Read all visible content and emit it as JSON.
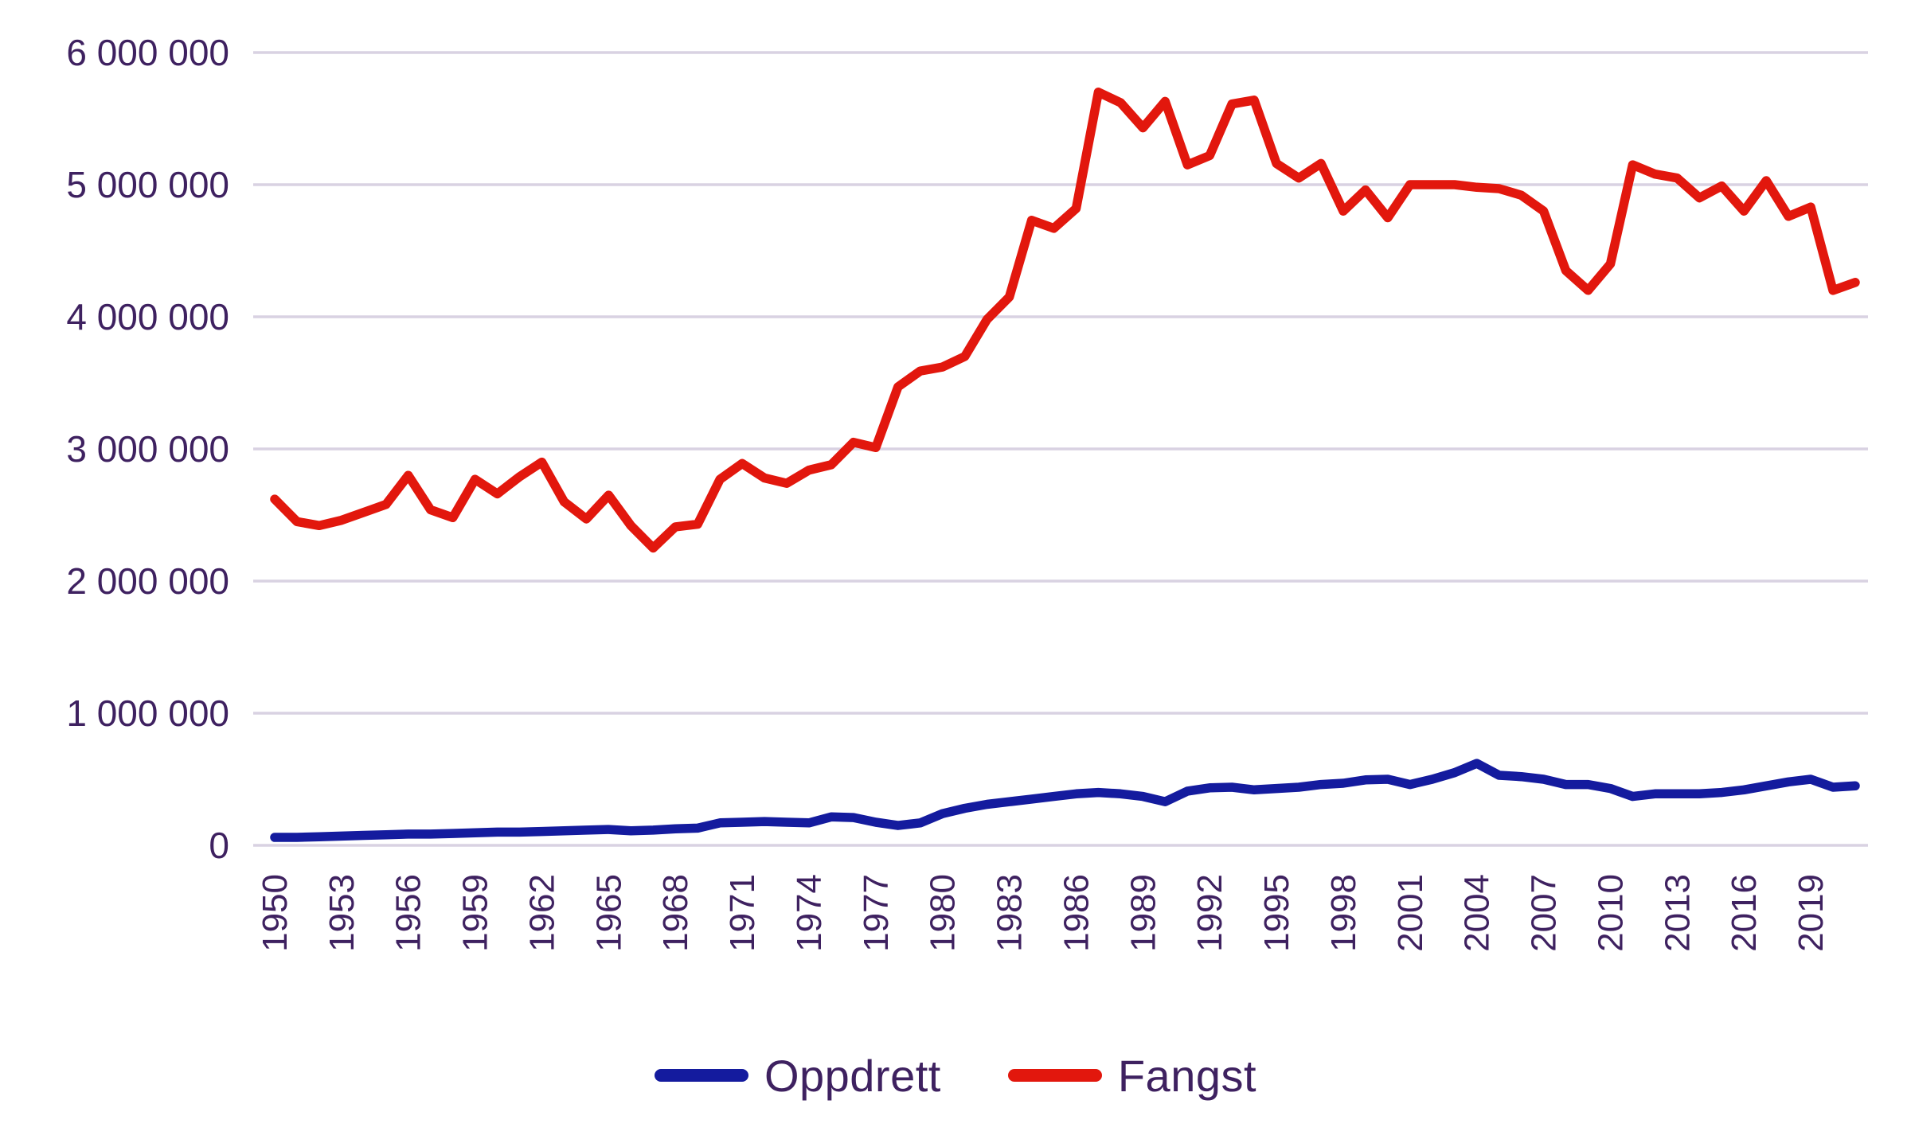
{
  "chart_data": {
    "type": "line",
    "title": "",
    "xlabel": "",
    "ylabel": "",
    "ylim": [
      0,
      6000000
    ],
    "grid": true,
    "legend_position": "bottom-center",
    "y_tick_labels": [
      "0",
      "1 000 000",
      "2 000 000",
      "3 000 000",
      "4 000 000",
      "5 000 000",
      "6 000 000"
    ],
    "x_tick_labels": [
      "1950",
      "1953",
      "1956",
      "1959",
      "1962",
      "1965",
      "1968",
      "1971",
      "1974",
      "1977",
      "1980",
      "1983",
      "1986",
      "1989",
      "1992",
      "1995",
      "1998",
      "2001",
      "2004",
      "2007",
      "2010",
      "2013",
      "2016",
      "2019"
    ],
    "x": [
      1950,
      1951,
      1952,
      1953,
      1954,
      1955,
      1956,
      1957,
      1958,
      1959,
      1960,
      1961,
      1962,
      1963,
      1964,
      1965,
      1966,
      1967,
      1968,
      1969,
      1970,
      1971,
      1972,
      1973,
      1974,
      1975,
      1976,
      1977,
      1978,
      1979,
      1980,
      1981,
      1982,
      1983,
      1984,
      1985,
      1986,
      1987,
      1988,
      1989,
      1990,
      1991,
      1992,
      1993,
      1994,
      1995,
      1996,
      1997,
      1998,
      1999,
      2000,
      2001,
      2002,
      2003,
      2004,
      2005,
      2006,
      2007,
      2008,
      2009,
      2010,
      2011,
      2012,
      2013,
      2014,
      2015,
      2016,
      2017,
      2018,
      2019,
      2020,
      2021
    ],
    "series": [
      {
        "name": "Oppdrett",
        "color": "#141B9E",
        "values": [
          60000,
          60000,
          65000,
          70000,
          75000,
          80000,
          85000,
          85000,
          90000,
          95000,
          100000,
          100000,
          105000,
          110000,
          115000,
          120000,
          110000,
          115000,
          125000,
          130000,
          170000,
          175000,
          180000,
          175000,
          170000,
          215000,
          210000,
          175000,
          150000,
          170000,
          240000,
          280000,
          310000,
          330000,
          350000,
          370000,
          390000,
          400000,
          390000,
          370000,
          330000,
          410000,
          435000,
          440000,
          420000,
          430000,
          440000,
          460000,
          470000,
          495000,
          500000,
          460000,
          500000,
          550000,
          620000,
          530000,
          520000,
          500000,
          460000,
          460000,
          430000,
          370000,
          390000,
          390000,
          390000,
          400000,
          420000,
          450000,
          480000,
          500000,
          440000,
          450000
        ]
      },
      {
        "name": "Fangst",
        "color": "#E2170D",
        "values": [
          2620000,
          2450000,
          2420000,
          2460000,
          2520000,
          2580000,
          2800000,
          2540000,
          2480000,
          2770000,
          2660000,
          2790000,
          2900000,
          2600000,
          2470000,
          2650000,
          2420000,
          2250000,
          2410000,
          2430000,
          2770000,
          2890000,
          2780000,
          2740000,
          2840000,
          2880000,
          3050000,
          3010000,
          3470000,
          3590000,
          3620000,
          3700000,
          3980000,
          4150000,
          4730000,
          4670000,
          4820000,
          5700000,
          5620000,
          5430000,
          5630000,
          5150000,
          5220000,
          5610000,
          5640000,
          5160000,
          5050000,
          5160000,
          4800000,
          4960000,
          4750000,
          5000000,
          5000000,
          5000000,
          4980000,
          4970000,
          4920000,
          4800000,
          4350000,
          4200000,
          4400000,
          5150000,
          5080000,
          5050000,
          4900000,
          4990000,
          4800000,
          5030000,
          4760000,
          4830000,
          4200000,
          4260000
        ]
      }
    ]
  },
  "style": {
    "grid_color": "#D9D2E2",
    "tick_text_color": "#3E2160",
    "line_width": 11.5
  }
}
